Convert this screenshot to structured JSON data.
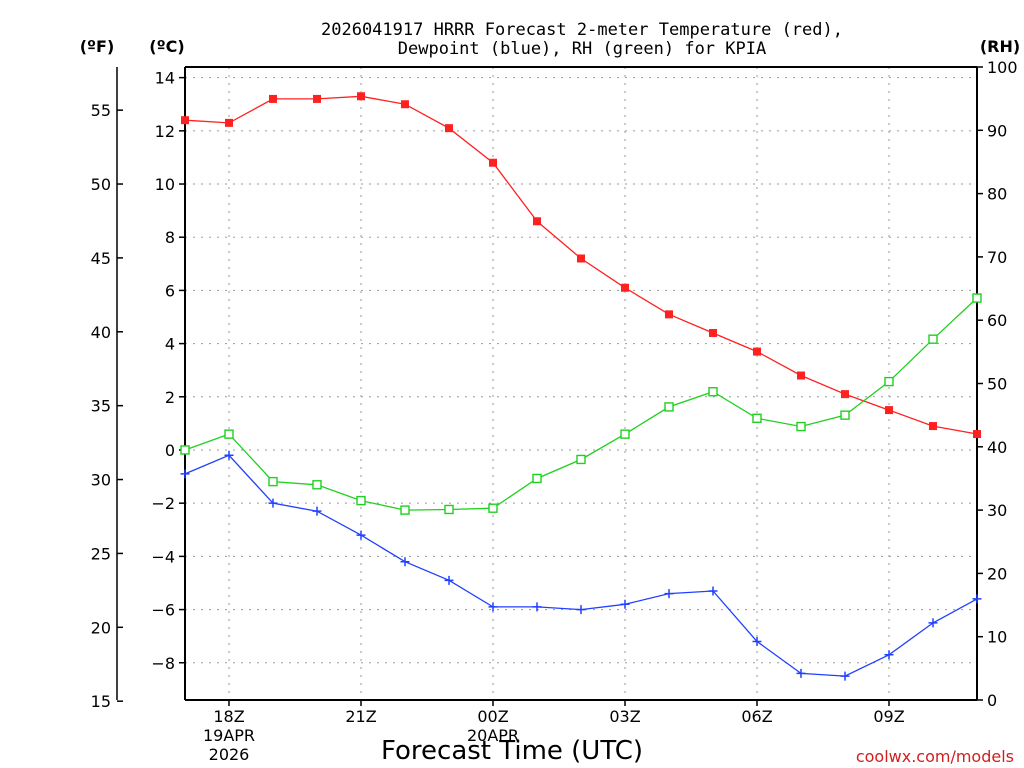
{
  "chart_data": {
    "type": "line",
    "title": [
      "2026041917 HRRR Forecast 2-meter Temperature (red),",
      "Dewpoint (blue), RH (green) for KPIA"
    ],
    "xlabel": "Forecast Time (UTC)",
    "watermark": "coolwx.com/models",
    "axes": {
      "fahrenheit": {
        "label": "(ºF)",
        "ticks": [
          15,
          20,
          25,
          30,
          35,
          40,
          45,
          50,
          55
        ]
      },
      "celsius": {
        "label": "(ºC)",
        "ticks": [
          -8,
          -6,
          -4,
          -2,
          0,
          2,
          4,
          6,
          8,
          10,
          12,
          14
        ],
        "ylim": [
          -9.4,
          14.4
        ]
      },
      "rh": {
        "label": "(RH)",
        "ticks": [
          0,
          10,
          20,
          30,
          40,
          50,
          60,
          70,
          80,
          90,
          100
        ],
        "ylim": [
          0,
          100
        ]
      }
    },
    "x_hours": [
      17,
      18,
      19,
      20,
      21,
      22,
      23,
      24,
      25,
      26,
      27,
      28,
      29,
      30,
      31,
      32,
      33,
      34,
      35
    ],
    "x_ticks": [
      {
        "hour": 18,
        "label": "18Z",
        "date": "19APR",
        "year": "2026"
      },
      {
        "hour": 21,
        "label": "21Z"
      },
      {
        "hour": 24,
        "label": "00Z",
        "date": "20APR"
      },
      {
        "hour": 27,
        "label": "03Z"
      },
      {
        "hour": 30,
        "label": "06Z"
      },
      {
        "hour": 33,
        "label": "09Z"
      }
    ],
    "series": [
      {
        "name": "Temperature",
        "axis": "celsius",
        "color": "#ff2020",
        "marker": "filled-square",
        "values": [
          12.4,
          12.3,
          13.2,
          13.2,
          13.3,
          13.0,
          12.1,
          10.8,
          8.6,
          7.2,
          6.1,
          5.1,
          4.4,
          3.7,
          2.8,
          2.1,
          1.5,
          0.9,
          0.6
        ]
      },
      {
        "name": "Dewpoint",
        "axis": "celsius",
        "color": "#2040ff",
        "marker": "plus",
        "values": [
          -0.9,
          -0.2,
          -2.0,
          -2.3,
          -3.2,
          -4.2,
          -4.9,
          -5.9,
          -5.9,
          -6.0,
          -5.8,
          -5.4,
          -5.3,
          -7.2,
          -8.4,
          -8.5,
          -7.7,
          -6.5,
          -5.6
        ]
      },
      {
        "name": "RH",
        "axis": "rh",
        "color": "#20d020",
        "marker": "open-square",
        "values": [
          39.5,
          42.0,
          34.5,
          34.0,
          31.5,
          30.0,
          30.1,
          30.3,
          35.0,
          38.0,
          42.0,
          46.3,
          48.7,
          44.5,
          43.2,
          45.0,
          50.3,
          57.0,
          63.5
        ]
      }
    ]
  }
}
